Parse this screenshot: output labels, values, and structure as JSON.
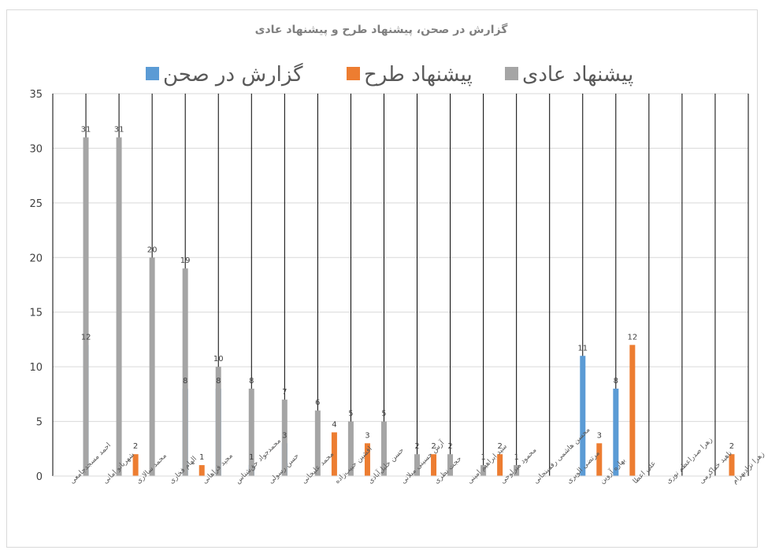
{
  "chart_data": {
    "type": "bar",
    "title": "گزارش در صحن، پیشنهاد طرح و پیشنهاد عادی",
    "ylim": [
      0,
      35
    ],
    "yticks": [
      0,
      5,
      10,
      15,
      20,
      25,
      30,
      35
    ],
    "legend_position": "top",
    "categories": [
      "احمد مسجدجامعی",
      "شهربانو امانی",
      "محمد سالاری",
      "الهام فخاری",
      "مجید فراهانی",
      "محمدجواد حق‌شناس",
      "حسن رسولی",
      "محمد علیخانی",
      "افشین حبیب‌زاده",
      "حسن خلیل‌آبادی",
      "آرش حسینی میلانی",
      "حجت نظری",
      "سید ابراهیم امینی",
      "محمود میرلوحی",
      "محسن هاشمی رفسنجانی",
      "مرتضی الویری",
      "بهاره آروین",
      "علی اعطا",
      "زهرا صدراعظم نوری",
      "ناهید خداکرمی",
      "زهرا نژادبهرام"
    ],
    "series": [
      {
        "name": "گزارش در صحن",
        "color": "#5b9bd5",
        "values": [
          null,
          12,
          null,
          null,
          8,
          8,
          1,
          3,
          null,
          null,
          null,
          null,
          null,
          null,
          null,
          null,
          11,
          8,
          null,
          null,
          null
        ]
      },
      {
        "name": "پیشنهاد طرح",
        "color": "#ed7d31",
        "values": [
          null,
          null,
          2,
          null,
          1,
          null,
          null,
          null,
          4,
          3,
          null,
          2,
          null,
          2,
          null,
          null,
          3,
          12,
          null,
          null,
          2
        ]
      },
      {
        "name": "پیشنهاد عادی",
        "color": "#a5a5a5",
        "values": [
          31,
          31,
          20,
          19,
          10,
          8,
          7,
          6,
          5,
          5,
          2,
          2,
          1,
          1,
          null,
          null,
          null,
          null,
          null,
          null,
          null
        ]
      }
    ],
    "legend_order": [
      2,
      1,
      0
    ]
  }
}
